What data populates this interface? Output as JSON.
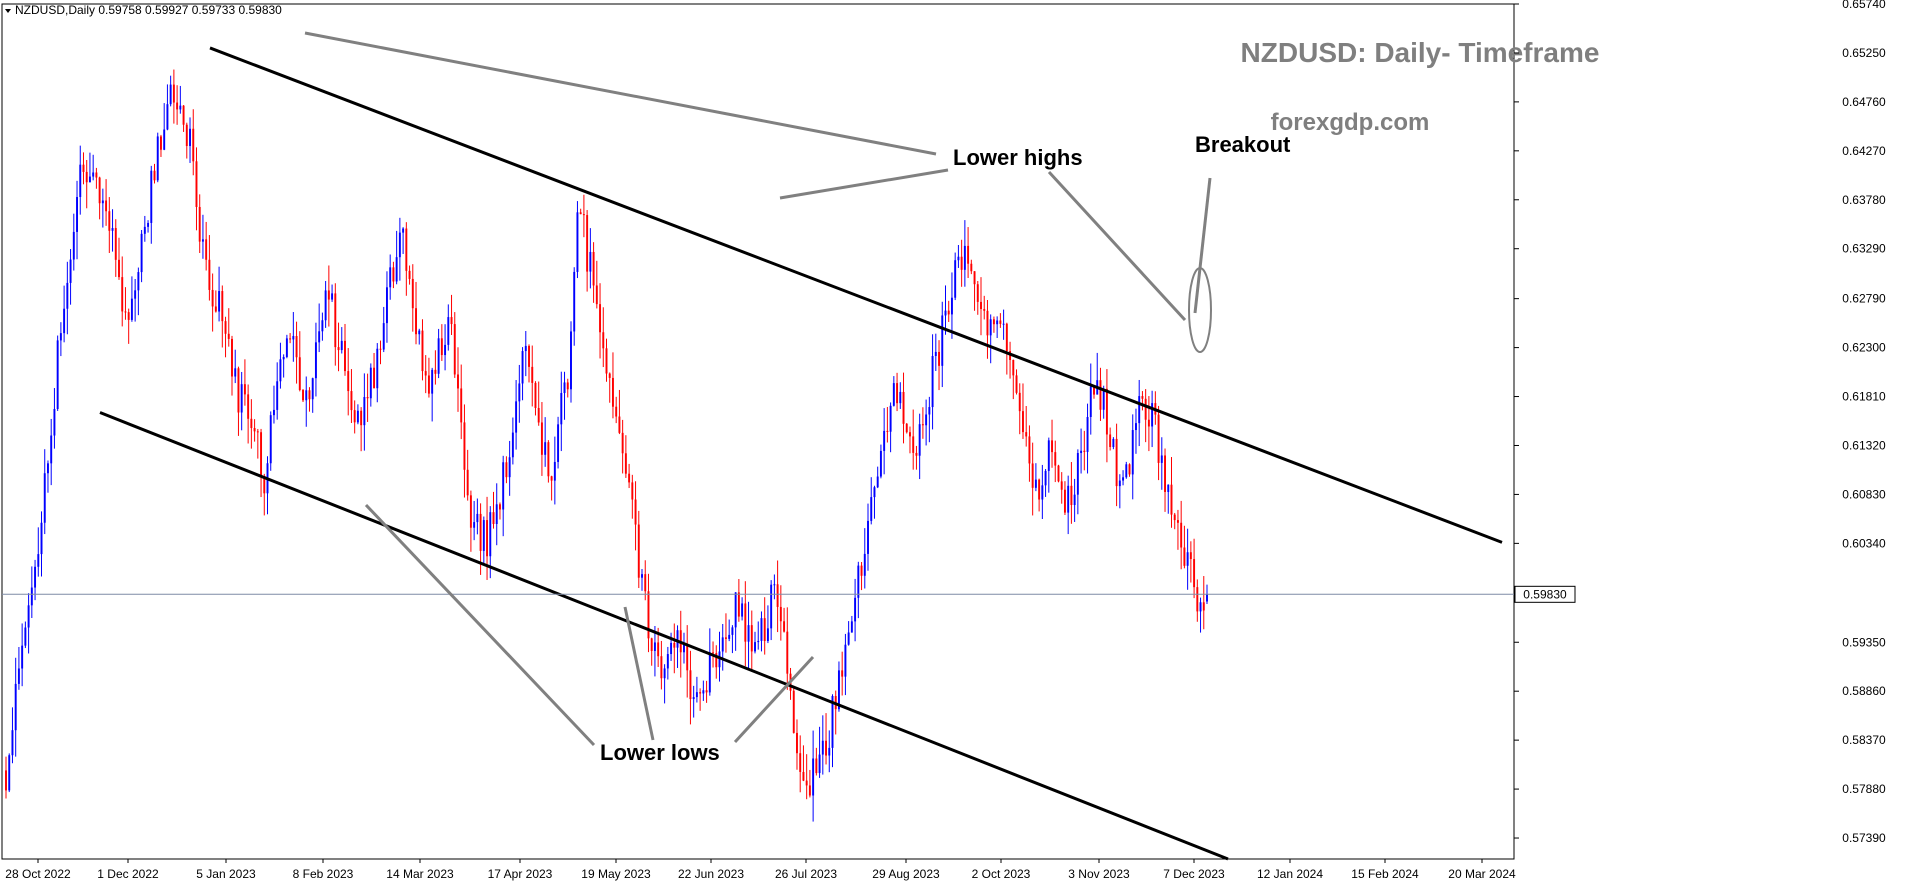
{
  "header": {
    "symbol_line": "NZDUSD,Daily  0.59758 0.59927 0.59733 0.59830"
  },
  "title": "NZDUSD: Daily- Timeframe",
  "site": "forexgdp.com",
  "annotations": {
    "lower_highs": "Lower highs",
    "breakout": "Breakout",
    "lower_lows": "Lower lows"
  },
  "colors": {
    "bull": "#0000ff",
    "bear": "#ff0000",
    "trendline": "#000000",
    "pointer": "#808080",
    "price_line": "#7f8ca6"
  },
  "chart_data": {
    "type": "candlestick",
    "symbol": "NZDUSD",
    "timeframe": "Daily",
    "ohlc_last": {
      "open": 0.59758,
      "high": 0.59927,
      "low": 0.59733,
      "close": 0.5983
    },
    "current_price": 0.5983,
    "current_price_label": "0.59830",
    "ylim": [
      0.5718,
      0.6574
    ],
    "y_ticks": [
      "0.65740",
      "0.65250",
      "0.64760",
      "0.64270",
      "0.63780",
      "0.63290",
      "0.62790",
      "0.62300",
      "0.61810",
      "0.61320",
      "0.60830",
      "0.60340",
      "0.59350",
      "0.58860",
      "0.58370",
      "0.57880",
      "0.57390"
    ],
    "x_ticks": [
      "28 Oct 2022",
      "1 Dec 2022",
      "5 Jan 2023",
      "8 Feb 2023",
      "14 Mar 2023",
      "17 Apr 2023",
      "19 May 2023",
      "22 Jun 2023",
      "26 Jul 2023",
      "29 Aug 2023",
      "2 Oct 2023",
      "3 Nov 2023",
      "7 Dec 2023",
      "12 Jan 2024",
      "15 Feb 2024",
      "20 Mar 2024"
    ],
    "path_closes": [
      0.579,
      0.588,
      0.593,
      0.6,
      0.608,
      0.617,
      0.625,
      0.633,
      0.64,
      0.642,
      0.637,
      0.638,
      0.631,
      0.625,
      0.627,
      0.635,
      0.641,
      0.646,
      0.649,
      0.648,
      0.643,
      0.635,
      0.63,
      0.627,
      0.623,
      0.619,
      0.616,
      0.614,
      0.61,
      0.618,
      0.622,
      0.625,
      0.619,
      0.62,
      0.625,
      0.628,
      0.623,
      0.619,
      0.615,
      0.618,
      0.62,
      0.626,
      0.632,
      0.636,
      0.626,
      0.623,
      0.619,
      0.623,
      0.626,
      0.618,
      0.608,
      0.605,
      0.604,
      0.606,
      0.611,
      0.616,
      0.622,
      0.619,
      0.614,
      0.61,
      0.618,
      0.621,
      0.639,
      0.632,
      0.627,
      0.621,
      0.616,
      0.612,
      0.605,
      0.598,
      0.594,
      0.591,
      0.595,
      0.593,
      0.59,
      0.588,
      0.591,
      0.592,
      0.594,
      0.597,
      0.595,
      0.592,
      0.595,
      0.599,
      0.594,
      0.588,
      0.582,
      0.58,
      0.581,
      0.583,
      0.59,
      0.593,
      0.598,
      0.604,
      0.607,
      0.614,
      0.62,
      0.617,
      0.613,
      0.615,
      0.619,
      0.623,
      0.627,
      0.632,
      0.634,
      0.628,
      0.626,
      0.625,
      0.624,
      0.619,
      0.614,
      0.61,
      0.609,
      0.612,
      0.61,
      0.607,
      0.611,
      0.615,
      0.62,
      0.617,
      0.611,
      0.61,
      0.613,
      0.618,
      0.616,
      0.612,
      0.609,
      0.605,
      0.601,
      0.598,
      0.5983
    ],
    "trendlines": [
      {
        "role": "upper",
        "from": {
          "date": "Jan 2023",
          "price": 0.653
        },
        "to": {
          "date": "Apr 2024",
          "price": 0.6035
        }
      },
      {
        "role": "lower",
        "from": {
          "date": "Nov 2022",
          "price": 0.6165
        },
        "to": {
          "date": "Apr 2024",
          "price": 0.5718
        }
      }
    ],
    "grid": false
  }
}
